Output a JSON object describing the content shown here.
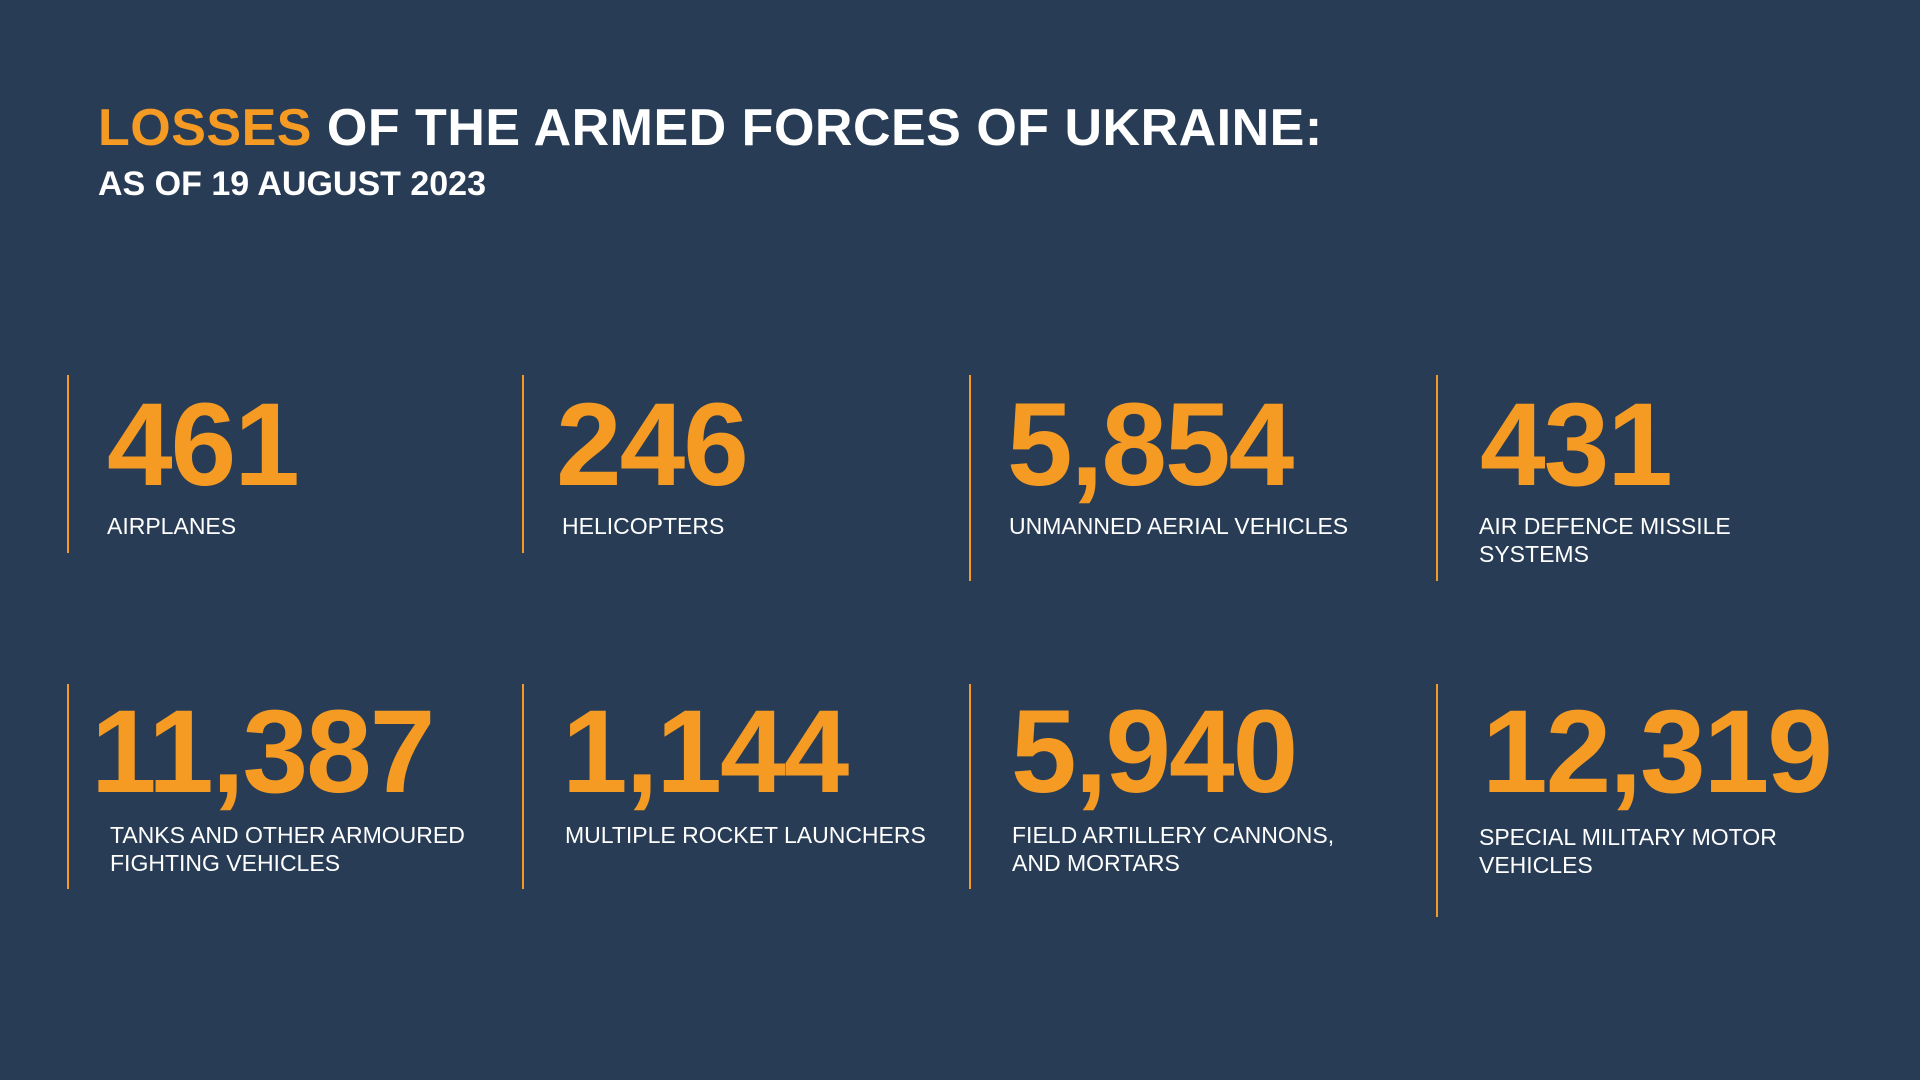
{
  "header": {
    "title_accent": "LOSSES",
    "title_rest": " OF THE ARMED FORCES OF UKRAINE:",
    "subtitle": "AS OF 19 AUGUST 2023"
  },
  "colors": {
    "background": "#283d55",
    "accent": "#f59a23",
    "text": "#ffffff"
  },
  "stats": [
    {
      "value": "461",
      "label_lines": [
        "AIRPLANES"
      ]
    },
    {
      "value": "246",
      "label_lines": [
        "HELICOPTERS"
      ]
    },
    {
      "value": "5,854",
      "label_lines": [
        "UNMANNED AERIAL VEHICLES"
      ]
    },
    {
      "value": "431",
      "label_lines": [
        "AIR DEFENCE MISSILE",
        "SYSTEMS"
      ]
    },
    {
      "value": "11,387",
      "label_lines": [
        "TANKS AND OTHER ARMOURED",
        "FIGHTING VEHICLES"
      ]
    },
    {
      "value": "1,144",
      "label_lines": [
        "MULTIPLE ROCKET LAUNCHERS"
      ]
    },
    {
      "value": "5,940",
      "label_lines": [
        "FIELD ARTILLERY CANNONS,",
        "AND MORTARS"
      ]
    },
    {
      "value": "12,319",
      "label_lines": [
        "SPECIAL MILITARY MOTOR",
        "VEHICLES"
      ]
    }
  ]
}
